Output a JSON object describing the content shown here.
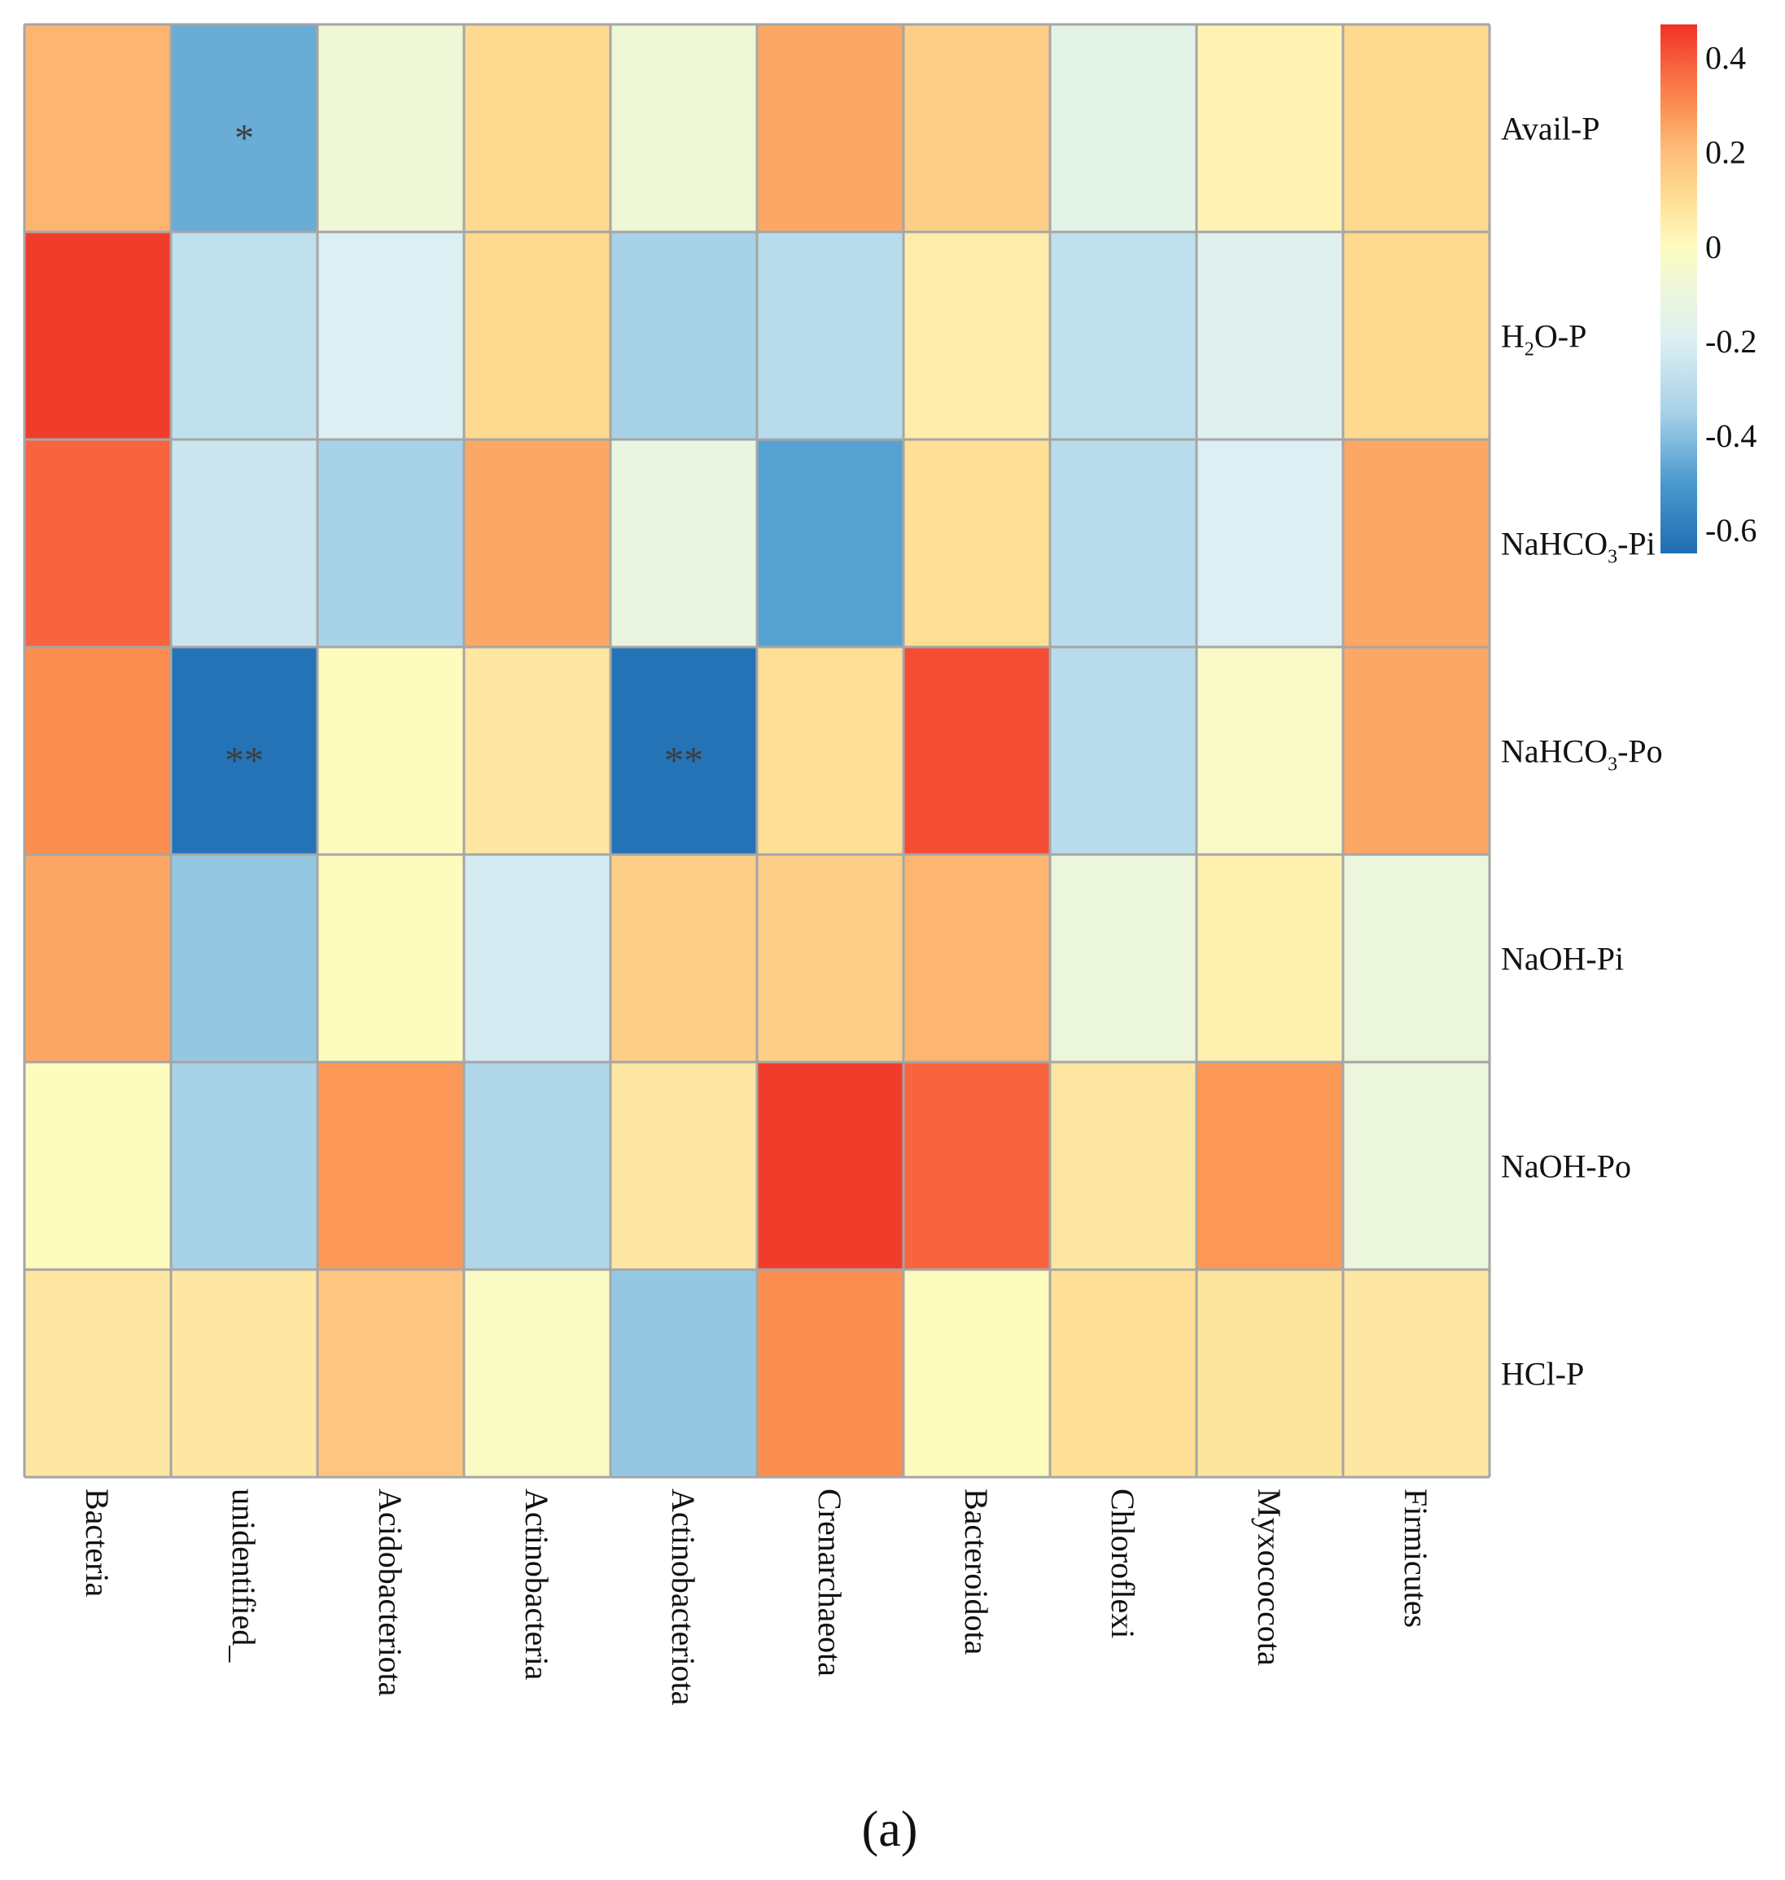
{
  "chart_data": {
    "type": "heatmap",
    "title": "",
    "panel_label": "(a)",
    "columns": [
      "Bacteria",
      "unidentified_",
      "Acidobacteriota",
      "Actinobacteria",
      "Actinobacteriota",
      "Crenarchaeota",
      "Bacteroidota",
      "Chloroflexi",
      "Myxococcota",
      "Firmicutes"
    ],
    "rows": [
      {
        "label": "Avail-P",
        "main": "Avail-P"
      },
      {
        "label": "H2O-P",
        "main": "H",
        "sub": "2",
        "rest": "O-P"
      },
      {
        "label": "NaHCO3-Pi",
        "main": "NaHCO",
        "sub": "3",
        "rest": "-Pi"
      },
      {
        "label": "NaHCO3-Po",
        "main": "NaHCO",
        "sub": "3",
        "rest": "-Po"
      },
      {
        "label": "NaOH-Pi",
        "main": "NaOH-Pi"
      },
      {
        "label": "NaOH-Po",
        "main": "NaOH-Po"
      },
      {
        "label": "HCl-P",
        "main": "HCl-P"
      }
    ],
    "values": [
      [
        0.22,
        -0.45,
        -0.08,
        0.12,
        -0.08,
        0.25,
        0.15,
        -0.15,
        0.03,
        0.12
      ],
      [
        0.45,
        -0.28,
        -0.2,
        0.12,
        -0.35,
        -0.3,
        0.05,
        -0.28,
        -0.18,
        0.12
      ],
      [
        0.38,
        -0.25,
        -0.35,
        0.25,
        -0.12,
        -0.48,
        0.1,
        -0.3,
        -0.2,
        0.25
      ],
      [
        0.3,
        -0.63,
        0.0,
        0.07,
        -0.63,
        0.1,
        0.42,
        -0.3,
        -0.03,
        0.25
      ],
      [
        0.25,
        -0.38,
        0.0,
        -0.22,
        0.15,
        0.15,
        0.22,
        -0.1,
        0.04,
        -0.1
      ],
      [
        0.0,
        -0.35,
        0.28,
        -0.33,
        0.07,
        0.45,
        0.38,
        0.07,
        0.28,
        -0.1
      ],
      [
        0.07,
        0.07,
        0.18,
        -0.02,
        -0.38,
        0.3,
        0.0,
        0.1,
        0.08,
        0.07
      ]
    ],
    "significance": [
      [
        "",
        "*",
        "",
        "",
        "",
        "",
        "",
        "",
        "",
        ""
      ],
      [
        "",
        "",
        "",
        "",
        "",
        "",
        "",
        "",
        "",
        ""
      ],
      [
        "",
        "",
        "",
        "",
        "",
        "",
        "",
        "",
        "",
        ""
      ],
      [
        "",
        "**",
        "",
        "",
        "**",
        "",
        "",
        "",
        "",
        ""
      ],
      [
        "",
        "",
        "",
        "",
        "",
        "",
        "",
        "",
        "",
        ""
      ],
      [
        "",
        "",
        "",
        "",
        "",
        "",
        "",
        "",
        "",
        ""
      ],
      [
        "",
        "",
        "",
        "",
        "",
        "",
        "",
        "",
        "",
        ""
      ]
    ],
    "color_scale": {
      "range": [
        -0.65,
        0.47
      ],
      "ticks": [
        0.4,
        0.2,
        0,
        -0.2,
        -0.4,
        -0.6
      ],
      "tick_labels": [
        "0.4",
        "0.2",
        "0",
        "-0.2",
        "-0.4",
        "-0.6"
      ],
      "stops": [
        {
          "v": -0.65,
          "c": "#1f6db3"
        },
        {
          "v": -0.5,
          "c": "#4a9ace"
        },
        {
          "v": -0.35,
          "c": "#a8d2e8"
        },
        {
          "v": -0.2,
          "c": "#dceff3"
        },
        {
          "v": -0.1,
          "c": "#ecf6dc"
        },
        {
          "v": 0.0,
          "c": "#fefbbf"
        },
        {
          "v": 0.1,
          "c": "#fedf95"
        },
        {
          "v": 0.2,
          "c": "#fdbf7a"
        },
        {
          "v": 0.3,
          "c": "#fb8e50"
        },
        {
          "v": 0.38,
          "c": "#f86440"
        },
        {
          "v": 0.47,
          "c": "#f03025"
        }
      ]
    }
  }
}
